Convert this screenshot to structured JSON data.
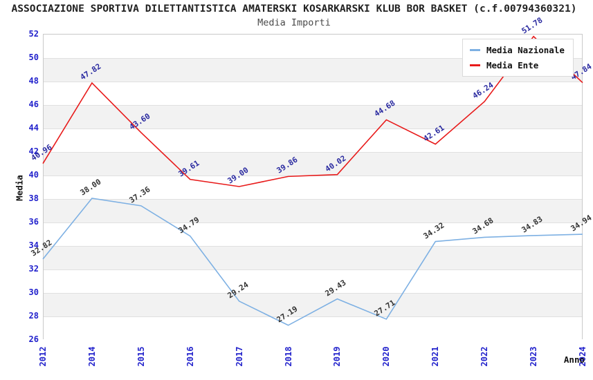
{
  "header": {
    "title": "ASSOCIAZIONE SPORTIVA DILETTANTISTICA AMATERSKI KOSARKARSKI KLUB BOR BASKET (c.f.00794360321)",
    "subtitle": "Media Importi"
  },
  "axes": {
    "y_label": "Media",
    "x_label": "Anno",
    "y_ticks": [
      52,
      50,
      48,
      46,
      44,
      42,
      40,
      38,
      36,
      34,
      32,
      30,
      28,
      26
    ],
    "x_ticks": [
      "2012",
      "2014",
      "2015",
      "2016",
      "2017",
      "2018",
      "2019",
      "2020",
      "2021",
      "2022",
      "2023",
      "2024"
    ]
  },
  "legend": {
    "items": [
      {
        "label": "Media Nazionale",
        "color": "#7db0e3"
      },
      {
        "label": "Media Ente",
        "color": "#e81a1a"
      }
    ]
  },
  "chart_data": {
    "type": "line",
    "title": "Media Importi",
    "xlabel": "Anno",
    "ylabel": "Media",
    "ylim": [
      26,
      52
    ],
    "y_tick_step": 2,
    "grid": "horizontal gridlines with alternating gray bands",
    "legend_position": "top-right inset",
    "categories": [
      "2012",
      "2014",
      "2015",
      "2016",
      "2017",
      "2018",
      "2019",
      "2020",
      "2021",
      "2022",
      "2023",
      "2024"
    ],
    "series": [
      {
        "name": "Media Nazionale",
        "color": "#7db0e3",
        "label_color": "#333333",
        "values": [
          32.82,
          38.0,
          37.36,
          34.79,
          29.24,
          27.19,
          29.43,
          27.71,
          34.32,
          34.68,
          34.83,
          34.94
        ]
      },
      {
        "name": "Media Ente",
        "color": "#e81a1a",
        "label_color": "#2a2aa0",
        "values": [
          40.96,
          47.82,
          43.6,
          39.61,
          39.0,
          39.86,
          40.02,
          44.68,
          42.61,
          46.24,
          51.78,
          47.84
        ]
      }
    ]
  },
  "colors": {
    "band_gray": "#f2f2f2",
    "gridline": "#e0e0e0",
    "plot_border": "#c9c9c9",
    "tick_label": "#2222cc",
    "title_text": "#222222",
    "subtitle_text": "#4a4a4a"
  }
}
